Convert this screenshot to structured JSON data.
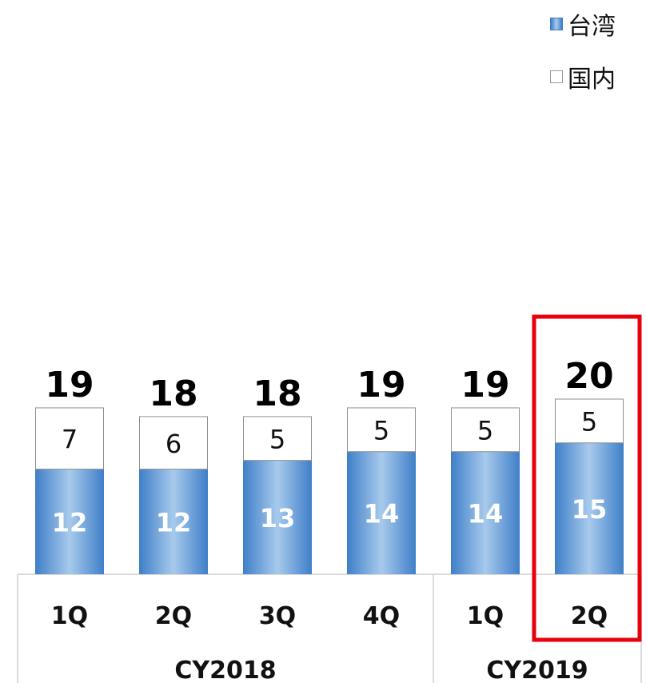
{
  "chart_data": {
    "type": "bar",
    "stacked": true,
    "categories": [
      "1Q",
      "2Q",
      "3Q",
      "4Q",
      "1Q",
      "2Q"
    ],
    "groups": [
      {
        "label": "CY2018",
        "count": 4
      },
      {
        "label": "CY2019",
        "count": 2
      }
    ],
    "series": [
      {
        "name": "台湾",
        "values": [
          12,
          12,
          13,
          14,
          14,
          15
        ],
        "color": "#5b9bd5"
      },
      {
        "name": "国内",
        "values": [
          7,
          6,
          5,
          5,
          5,
          5
        ],
        "color": "#ffffff"
      }
    ],
    "totals": [
      19,
      18,
      18,
      19,
      19,
      20
    ],
    "legend_position": "top-right",
    "highlight_index": 5,
    "highlight_color": "#e8000b",
    "grid": false
  }
}
